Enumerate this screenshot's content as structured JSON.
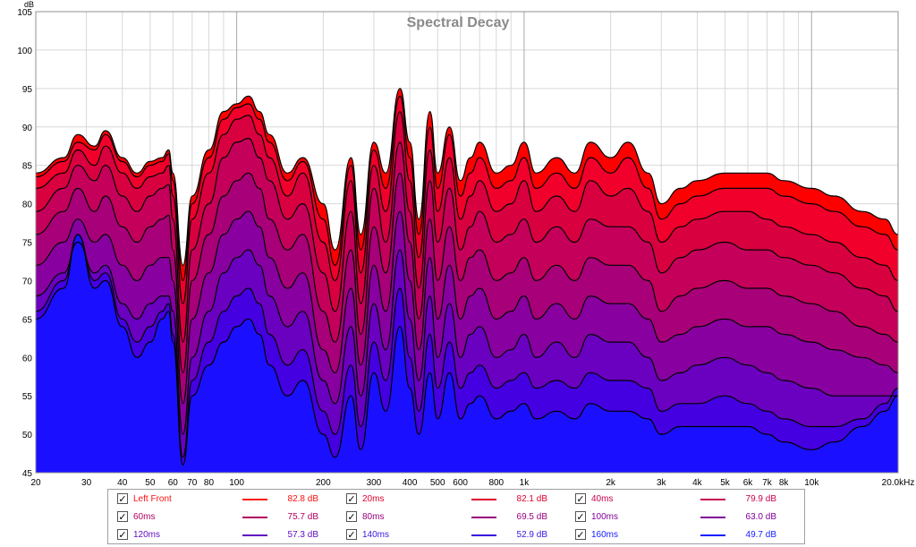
{
  "chart_data": {
    "type": "area",
    "title": "Spectral Decay",
    "ylabel": "dB",
    "xlabel": "",
    "x_scale": "log",
    "xlim": [
      20,
      20000
    ],
    "ylim": [
      45,
      105
    ],
    "grid": true,
    "x_tick_values": [
      20,
      30,
      40,
      50,
      60,
      70,
      80,
      100,
      200,
      300,
      400,
      500,
      600,
      800,
      1000,
      2000,
      3000,
      4000,
      5000,
      6000,
      7000,
      8000,
      10000,
      20000
    ],
    "x_tick_labels": [
      "20",
      "30",
      "40",
      "50",
      "60",
      "70",
      "80",
      "100",
      "200",
      "300",
      "400",
      "500",
      "600",
      "800",
      "1k",
      "2k",
      "3k",
      "4k",
      "5k",
      "6k",
      "7k",
      "8k",
      "10k",
      "20.0kHz"
    ],
    "y_tick_values": [
      45,
      50,
      55,
      60,
      65,
      70,
      75,
      80,
      85,
      90,
      95,
      100,
      105
    ],
    "y_tick_labels": [
      "45",
      "50",
      "55",
      "60",
      "65",
      "70",
      "75",
      "80",
      "85",
      "90",
      "95",
      "100",
      "105"
    ],
    "x": [
      20,
      25,
      28,
      32,
      35,
      40,
      45,
      50,
      55,
      58,
      60,
      65,
      70,
      80,
      90,
      100,
      110,
      120,
      130,
      150,
      170,
      200,
      220,
      250,
      270,
      300,
      330,
      370,
      400,
      430,
      470,
      500,
      550,
      600,
      650,
      700,
      800,
      900,
      1000,
      1100,
      1300,
      1500,
      1700,
      2000,
      2300,
      2700,
      3000,
      3500,
      4000,
      5000,
      6000,
      7000,
      8000,
      10000,
      12000,
      15000,
      18000,
      20000
    ],
    "series": [
      {
        "name": "Left Front",
        "color": "#ff0000",
        "values": [
          84,
          86,
          89,
          87.5,
          89.5,
          86,
          84,
          85.5,
          86,
          87,
          84,
          72,
          81,
          87,
          92,
          93,
          94,
          92,
          89,
          84,
          86,
          80,
          74,
          86,
          76,
          88,
          84,
          95,
          88,
          78,
          92,
          84,
          90,
          83,
          86,
          88,
          84,
          85,
          88,
          84,
          86,
          84,
          88,
          86,
          88,
          84,
          80,
          82,
          83,
          84,
          84,
          84,
          83,
          82,
          81,
          79,
          78,
          76
        ]
      },
      {
        "name": "20ms",
        "color": "#f0002a",
        "values": [
          83.5,
          85.5,
          88,
          87,
          89,
          85.5,
          83.5,
          85,
          85.5,
          86.5,
          83,
          70,
          80,
          86,
          91,
          92.5,
          93,
          91,
          88,
          83,
          85.5,
          78,
          72,
          85,
          74,
          87,
          82,
          94,
          86,
          76,
          90,
          82,
          89,
          81,
          84,
          86,
          82,
          83,
          86,
          82,
          84,
          82,
          86,
          84,
          86,
          82,
          78,
          80,
          81,
          82,
          82,
          82,
          81,
          80,
          79,
          77,
          76,
          74
        ]
      },
      {
        "name": "40ms",
        "color": "#d8003f",
        "values": [
          82,
          84,
          87,
          85,
          87.5,
          84,
          82,
          83.5,
          84,
          85,
          81,
          67,
          78,
          84,
          89,
          91,
          91.5,
          89,
          86,
          81,
          84,
          75,
          70,
          83,
          71,
          85,
          79,
          92,
          83,
          73,
          87,
          79,
          86,
          78,
          81,
          83,
          79,
          80,
          83,
          79,
          81,
          79,
          83,
          81,
          82,
          79,
          75,
          77,
          78,
          79,
          79,
          78,
          77,
          76,
          75,
          73,
          72,
          70
        ]
      },
      {
        "name": "60ms",
        "color": "#c4005a",
        "values": [
          79,
          82,
          85,
          83,
          85,
          81,
          79,
          81,
          82,
          82.5,
          78,
          62,
          74,
          80,
          86,
          88,
          88.5,
          86,
          83,
          78,
          80,
          71,
          66,
          79,
          67,
          82,
          75,
          88,
          79,
          69,
          83,
          75,
          82,
          74,
          77,
          79,
          75,
          76,
          78,
          75,
          77,
          75,
          78,
          77,
          77,
          75,
          71,
          73,
          74,
          75,
          74,
          74,
          73,
          72,
          71,
          69,
          68,
          66
        ]
      },
      {
        "name": "80ms",
        "color": "#a80078",
        "values": [
          76,
          79,
          82,
          79,
          81,
          77,
          75,
          77,
          78,
          78.5,
          74,
          58,
          70,
          76,
          81,
          83,
          84,
          82,
          78,
          74,
          76,
          66,
          62,
          74,
          63,
          77,
          71,
          84,
          75,
          65,
          78,
          70,
          77,
          70,
          73,
          74,
          70,
          71,
          73,
          70,
          72,
          70,
          73,
          72,
          72,
          70,
          66,
          68,
          69,
          70,
          69,
          69,
          68,
          67,
          66,
          64,
          63,
          62
        ]
      },
      {
        "name": "100ms",
        "color": "#8800a0",
        "values": [
          72,
          75,
          78,
          75,
          76,
          72,
          70,
          72,
          73,
          73,
          70,
          54,
          65,
          71,
          76,
          78,
          79,
          77,
          73,
          69,
          71,
          61,
          58,
          69,
          59,
          72,
          66,
          79,
          70,
          61,
          73,
          65,
          72,
          65,
          68,
          69,
          65,
          66,
          68,
          65,
          67,
          65,
          68,
          67,
          67,
          65,
          62,
          63,
          64,
          65,
          64,
          64,
          63,
          62,
          61,
          60,
          59,
          58
        ]
      },
      {
        "name": "120ms",
        "color": "#6a00c0",
        "values": [
          68,
          71,
          75,
          71,
          72,
          67,
          65,
          67,
          68,
          68,
          66,
          50,
          60,
          66,
          71,
          73,
          74,
          72,
          68,
          64,
          66,
          57,
          54,
          64,
          55,
          67,
          61,
          74,
          65,
          57,
          68,
          60,
          67,
          60,
          63,
          64,
          60,
          61,
          63,
          60,
          62,
          60,
          63,
          62,
          62,
          60,
          57,
          58,
          59,
          60,
          59,
          58,
          57,
          56,
          55,
          55,
          55,
          55
        ]
      },
      {
        "name": "140ms",
        "color": "#4400e0",
        "values": [
          66,
          70,
          76,
          70,
          71,
          65,
          62,
          64,
          66,
          67,
          63,
          47,
          57,
          62,
          66,
          68,
          69,
          67,
          63,
          59,
          61,
          53,
          50,
          59,
          51,
          62,
          57,
          69,
          60,
          53,
          63,
          56,
          62,
          56,
          58,
          59,
          56,
          57,
          58,
          56,
          57,
          56,
          58,
          57,
          57,
          56,
          53,
          54,
          54,
          55,
          54,
          53,
          52,
          51,
          51,
          52,
          54,
          56
        ]
      },
      {
        "name": "160ms",
        "color": "#1a10ff",
        "values": [
          65,
          69,
          76,
          69,
          70,
          64,
          60,
          62,
          65,
          66,
          62,
          46,
          55,
          59,
          62,
          64,
          65,
          63,
          59,
          55,
          57,
          50,
          47,
          55,
          48,
          58,
          53,
          64,
          56,
          50,
          58,
          52,
          58,
          52,
          54,
          55,
          52,
          53,
          54,
          52,
          53,
          52,
          54,
          53,
          53,
          52,
          50,
          51,
          51,
          51,
          51,
          50,
          49,
          48,
          49,
          51,
          53,
          55
        ]
      }
    ],
    "legend": [
      {
        "name": "Left Front",
        "value": "82.8 dB",
        "color": "#ff1010",
        "checked": true
      },
      {
        "name": "20ms",
        "value": "82.1 dB",
        "color": "#e0002e",
        "checked": true
      },
      {
        "name": "40ms",
        "value": "79.9 dB",
        "color": "#c8004c",
        "checked": true
      },
      {
        "name": "60ms",
        "value": "75.7 dB",
        "color": "#b00060",
        "checked": true
      },
      {
        "name": "80ms",
        "value": "69.5 dB",
        "color": "#98007c",
        "checked": true
      },
      {
        "name": "100ms",
        "value": "63.0 dB",
        "color": "#800098",
        "checked": true
      },
      {
        "name": "120ms",
        "value": "57.3 dB",
        "color": "#6010c0",
        "checked": true
      },
      {
        "name": "140ms",
        "value": "52.9 dB",
        "color": "#3818e0",
        "checked": true
      },
      {
        "name": "160ms",
        "value": "49.7 dB",
        "color": "#1820ff",
        "checked": true
      }
    ],
    "legend_placement": "bottom"
  },
  "checkmark": "✓"
}
